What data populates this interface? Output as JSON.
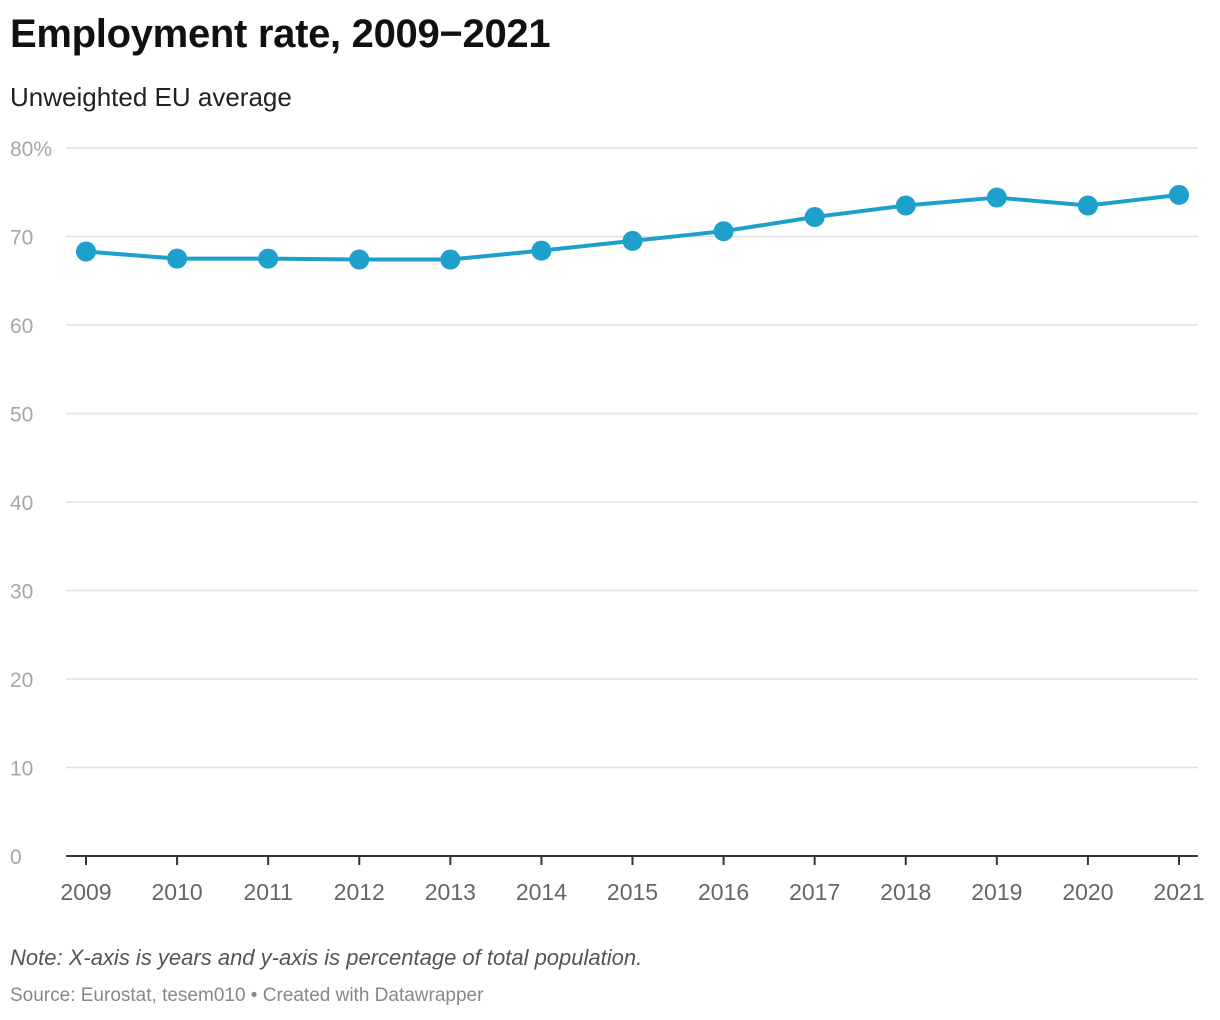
{
  "header": {
    "title": "Employment rate, 2009−2021",
    "subtitle": "Unweighted EU average"
  },
  "footer": {
    "note": "Note: X-axis is years and y-axis is percentage of total population.",
    "source": "Source: Eurostat, tesem010",
    "separator": " • ",
    "credit": "Created with Datawrapper"
  },
  "chart_data": {
    "type": "line",
    "title": "Employment rate, 2009−2021",
    "subtitle": "Unweighted EU average",
    "xlabel": "",
    "ylabel": "",
    "x": [
      2009,
      2010,
      2011,
      2012,
      2013,
      2014,
      2015,
      2016,
      2017,
      2018,
      2019,
      2020,
      2021
    ],
    "x_tick_labels": [
      "2009",
      "2010",
      "2011",
      "2012",
      "2013",
      "2014",
      "2015",
      "2016",
      "2017",
      "2018",
      "2019",
      "2020",
      "2021"
    ],
    "series": [
      {
        "values": [
          68.3,
          67.5,
          67.5,
          67.4,
          67.4,
          68.4,
          69.5,
          70.6,
          72.2,
          73.5,
          74.4,
          73.5,
          74.7
        ],
        "color": "#1ea0cc"
      }
    ],
    "ylim": [
      0,
      80
    ],
    "y_ticks": [
      0,
      10,
      20,
      30,
      40,
      50,
      60,
      70,
      80
    ],
    "y_tick_labels": [
      "0",
      "10",
      "20",
      "30",
      "40",
      "50",
      "60",
      "70",
      "80%"
    ],
    "grid": true,
    "colors": {
      "line": "#1ea0cc",
      "grid": "#e0e0e0",
      "axis": "#333333",
      "tick_label": "#a6a6a6",
      "x_tick_label": "#666666"
    }
  }
}
